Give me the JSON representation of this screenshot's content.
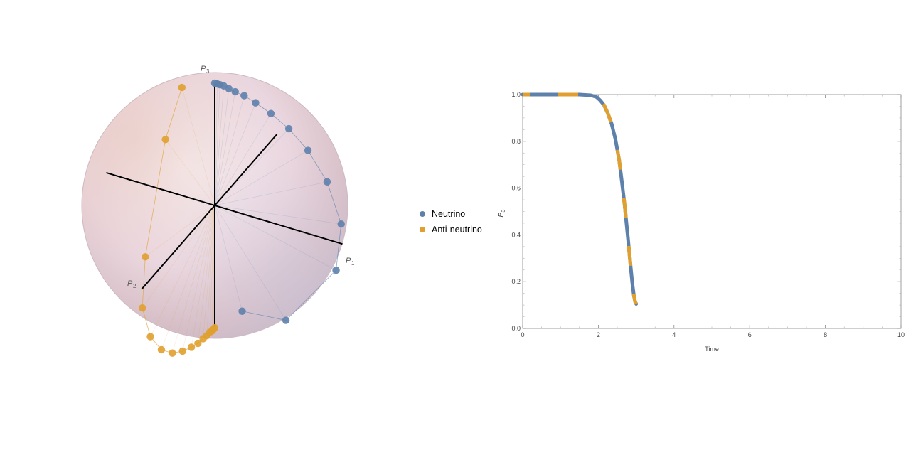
{
  "colors": {
    "neutrino": "#5e81ac",
    "anti_neutrino": "#e0a02f"
  },
  "legend": {
    "neutrino": "Neutrino",
    "anti_neutrino": "Anti-neutrino"
  },
  "sphere": {
    "axis_labels": {
      "p1": "P",
      "p1_sub": "1",
      "p2": "P",
      "p2_sub": "2",
      "p3": "P",
      "p3_sub": "3"
    }
  },
  "chart_data": [
    {
      "type": "scatter",
      "title": "",
      "projection": "Bloch sphere (3D, oblique view)",
      "axes": [
        "P1",
        "P2",
        "P3"
      ],
      "series": [
        {
          "name": "Neutrino",
          "points": [
            [
              0.0,
              0.0,
              1.0
            ],
            [
              0.02,
              0.0,
              1.0
            ],
            [
              0.04,
              0.0,
              1.0
            ],
            [
              0.07,
              0.0,
              1.0
            ],
            [
              0.11,
              0.0,
              0.99
            ],
            [
              0.16,
              0.0,
              0.98
            ],
            [
              0.23,
              0.0,
              0.97
            ],
            [
              0.32,
              0.0,
              0.94
            ],
            [
              0.44,
              0.0,
              0.89
            ],
            [
              0.58,
              0.0,
              0.81
            ],
            [
              0.73,
              0.0,
              0.68
            ],
            [
              0.88,
              0.0,
              0.47
            ],
            [
              0.99,
              0.0,
              0.16
            ],
            [
              0.95,
              0.0,
              -0.23
            ],
            [
              0.5,
              -0.1,
              -0.85
            ],
            [
              0.1,
              -0.2,
              -0.97
            ]
          ]
        },
        {
          "name": "Anti-neutrino",
          "points": [
            [
              0.0,
              0.0,
              -1.0
            ],
            [
              0.0,
              0.02,
              -1.0
            ],
            [
              0.0,
              0.04,
              -1.0
            ],
            [
              0.0,
              0.07,
              -0.99
            ],
            [
              0.0,
              0.11,
              -0.99
            ],
            [
              0.0,
              0.16,
              -0.98
            ],
            [
              0.0,
              0.23,
              -0.97
            ],
            [
              0.0,
              0.32,
              -0.94
            ],
            [
              0.0,
              0.44,
              -0.89
            ],
            [
              0.0,
              0.58,
              -0.81
            ],
            [
              0.0,
              0.73,
              -0.68
            ],
            [
              0.0,
              0.88,
              -0.47
            ],
            [
              0.0,
              0.99,
              -0.16
            ],
            [
              0.0,
              0.95,
              0.23
            ],
            [
              -0.1,
              0.5,
              0.85
            ],
            [
              -0.2,
              0.1,
              0.97
            ]
          ]
        }
      ]
    },
    {
      "type": "line",
      "title": "",
      "xlabel": "Time",
      "ylabel": "P",
      "ylabel_sub": "3",
      "xlim": [
        0,
        10
      ],
      "ylim": [
        0,
        1
      ],
      "xticks": [
        0,
        2,
        4,
        6,
        8,
        10
      ],
      "xtick_labels": [
        "0",
        "2",
        "4",
        "6",
        "8",
        "10"
      ],
      "yticks": [
        0.0,
        0.2,
        0.4,
        0.6,
        0.8,
        1.0
      ],
      "ytick_labels": [
        "0.0",
        "0.2",
        "0.4",
        "0.6",
        "0.8",
        "1.0"
      ],
      "grid": false,
      "series": [
        {
          "name": "Neutrino",
          "x": [
            0,
            0.5,
            1.0,
            1.5,
            1.8,
            1.95,
            2.05,
            2.15,
            2.25,
            2.35,
            2.45,
            2.55,
            2.62,
            2.7,
            2.78,
            2.85,
            2.9,
            2.94,
            2.97,
            3.0
          ],
          "y": [
            1.0,
            1.0,
            1.0,
            1.0,
            0.997,
            0.99,
            0.975,
            0.955,
            0.92,
            0.875,
            0.81,
            0.72,
            0.63,
            0.52,
            0.39,
            0.27,
            0.19,
            0.14,
            0.115,
            0.105
          ]
        },
        {
          "name": "Anti-neutrino",
          "x": [
            0,
            0.5,
            1.0,
            1.5,
            1.8,
            1.95,
            2.05,
            2.15,
            2.25,
            2.35,
            2.45,
            2.55,
            2.62,
            2.7,
            2.78,
            2.85,
            2.9,
            2.94,
            2.97,
            3.0
          ],
          "y": [
            1.0,
            1.0,
            1.0,
            1.0,
            0.997,
            0.99,
            0.975,
            0.955,
            0.92,
            0.875,
            0.81,
            0.72,
            0.63,
            0.52,
            0.39,
            0.27,
            0.19,
            0.14,
            0.115,
            0.105
          ]
        }
      ]
    }
  ]
}
